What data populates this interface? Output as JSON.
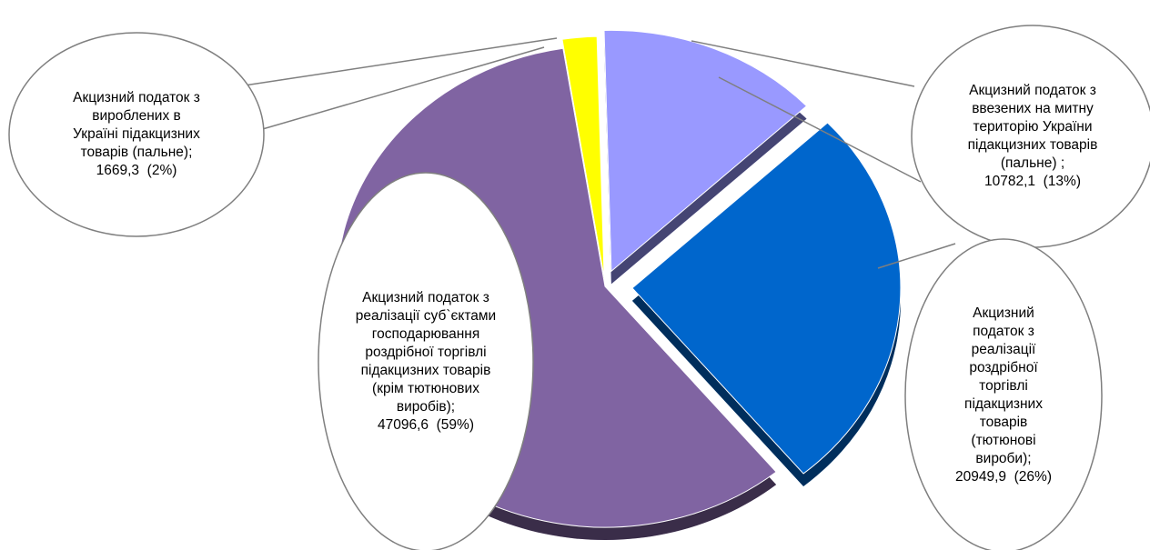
{
  "chart_data": {
    "type": "pie",
    "categories": [
      "Акцизний податок з вироблених в Україні підакцизних товарів (пальне);",
      "Акцизний податок з ввезених на митну територію України підакцизних товарів (пальне) ;",
      "Акцизний податок з реалізації роздрібної торгівлі підакцизних товарів (тютюнові вироби);",
      "Акцизний податок з реалізації суб`єктами господарювання роздрібної торгівлі підакцизних товарів (крім тютюнових виробів);"
    ],
    "values": [
      1669.3,
      10782.1,
      20949.9,
      47096.6
    ],
    "value_labels": [
      "1669,3",
      "10782,1",
      "20949,9",
      "47096,6"
    ],
    "percents": [
      2,
      13,
      26,
      59
    ],
    "percent_labels": [
      "(2%)",
      "(13%)",
      "(26%)",
      "(59%)"
    ],
    "colors": [
      "#ffff00",
      "#9999ff",
      "#0066cc",
      "#8064a2"
    ]
  }
}
